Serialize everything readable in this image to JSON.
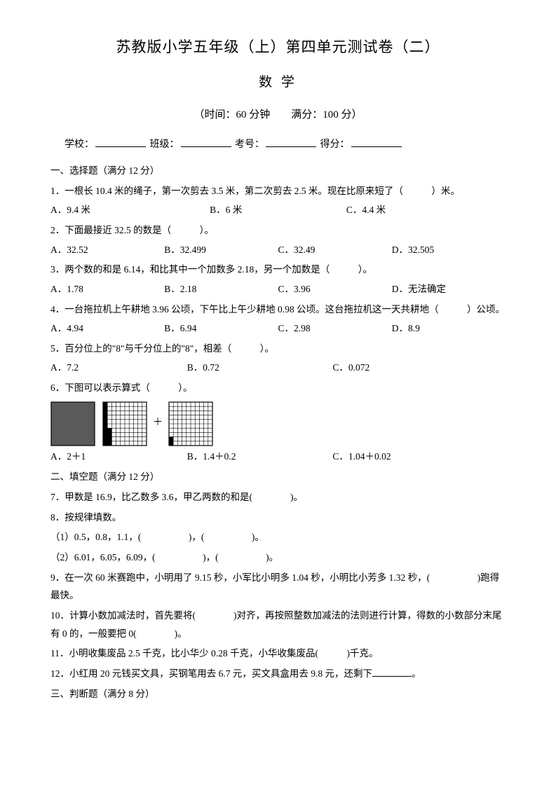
{
  "header": {
    "title_main": "苏教版小学五年级（上）第四单元测试卷（二）",
    "title_sub": "数 学",
    "meta": "（时间：60 分钟　　满分：100 分）",
    "labels": {
      "school": "学校：",
      "class": "班级：",
      "exam_no": "考号：",
      "score": "得分："
    }
  },
  "s1": {
    "heading": "一、选择题（满分 12 分）",
    "q1": {
      "stem": "1．一根长 10.4 米的绳子，第一次剪去 3.5 米，第二次剪去 2.5 米。现在比原来短了（　　　）米。",
      "a": "A．9.4 米",
      "b": "B．6 米",
      "c": "C．4.4 米"
    },
    "q2": {
      "stem": "2．下面最接近 32.5 的数是（　　　）。",
      "a": "A．32.52",
      "b": "B．32.499",
      "c": "C．32.49",
      "d": "D．32.505"
    },
    "q3": {
      "stem": "3．两个数的和是 6.14，和比其中一个加数多 2.18，另一个加数是（　　　）。",
      "a": "A．1.78",
      "b": "B．2.18",
      "c": "C．3.96",
      "d": "D．无法确定"
    },
    "q4": {
      "stem": "4．一台拖拉机上午耕地 3.96 公顷，下午比上午少耕地 0.98 公顷。这台拖拉机这一天共耕地（　　　）公顷。",
      "a": "A．4.94",
      "b": "B．6.94",
      "c": "C．2.98",
      "d": "D．8.9"
    },
    "q5": {
      "stem": "5．百分位上的\"8\"与千分位上的\"8\"，相差（　　　）。",
      "a": "A．7.2",
      "b": "B．0.72",
      "c": "C．0.072"
    },
    "q6": {
      "stem": "6．下图可以表示算式（　　　）。",
      "a": "A．2＋1",
      "b": "B．1.4＋0.2",
      "c": "C．1.04＋0.02"
    }
  },
  "s2": {
    "heading": "二、填空题（满分 12 分）",
    "q7": "7．甲数是 16.9，比乙数多 3.6，甲乙两数的和是(　　　　)。",
    "q8": "8．按规律填数。",
    "q8a": "（1）0.5，0.8，1.1，(　　　　　)，(　　　　　)。",
    "q8b": "（2）6.01，6.05，6.09，(　　　　　)，(　　　　　)。",
    "q9": "9．在一次 60 米赛跑中，小明用了 9.15 秒，小军比小明多 1.04 秒，小明比小芳多 1.32 秒，(　　　　　)跑得最快。",
    "q10": "10．计算小数加减法时，首先要将(　　　　)对齐，再按照整数加减法的法则进行计算，得数的小数部分末尾有 0 的，一般要把 0(　　　　)。",
    "q11": "11．小明收集废品 2.5 千克，比小华少 0.28 千克，小华收集废品(　　　)千克。",
    "q12_a": "12．小红用 20 元钱买文具，买钢笔用去 6.7 元，买文具盒用去 9.8 元，还剩下",
    "q12_b": "。"
  },
  "s3": {
    "heading": "三、判断题（满分 8 分）"
  },
  "grids": {
    "cell": 6.2,
    "cols": 10,
    "rows": 10,
    "fill_dark": "#5a5a5a",
    "fill_black": "#000000",
    "grid_line": "#000000",
    "border": "#000000",
    "g1": {
      "type": "full"
    },
    "g2": {
      "type": "partial",
      "full_cols": 1,
      "extra_cells_bottom_right_of_col": "none",
      "pattern": "col1_full_rows5to10_col2"
    },
    "g3": {
      "type": "partial2"
    }
  }
}
